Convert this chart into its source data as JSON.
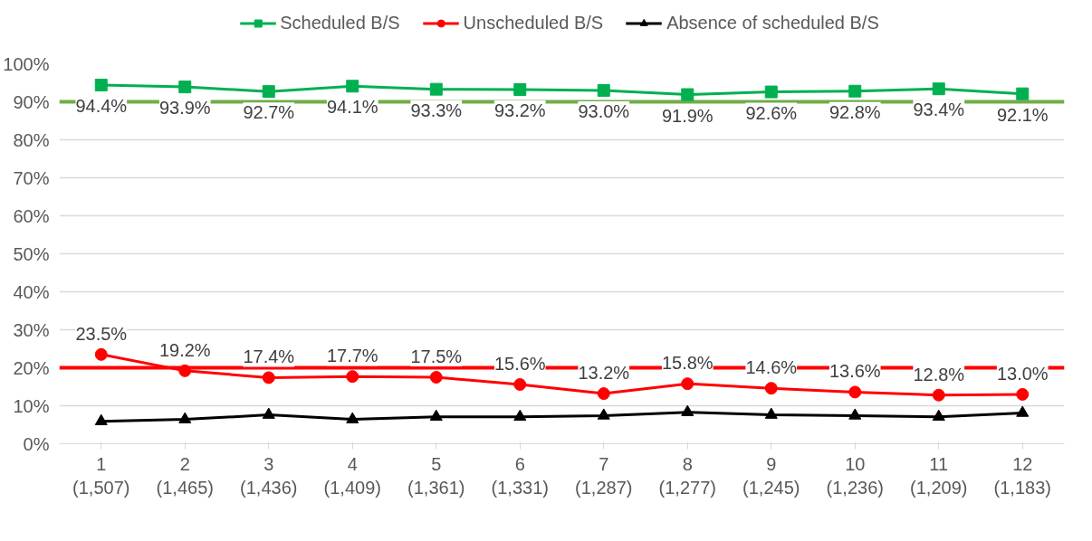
{
  "chart_data": {
    "type": "line",
    "categories": [
      "1\n(1,507)",
      "2\n(1,465)",
      "3\n(1,436)",
      "4\n(1,409)",
      "5\n(1,361)",
      "6\n(1,331)",
      "7\n(1,287)",
      "8\n(1,277)",
      "9\n(1,245)",
      "10\n(1,236)",
      "11\n(1,209)",
      "12\n(1,183)"
    ],
    "series": [
      {
        "name": "Scheduled B/S",
        "color": "#00b050",
        "marker": "square",
        "values": [
          94.4,
          93.9,
          92.7,
          94.1,
          93.3,
          93.2,
          93.0,
          91.9,
          92.6,
          92.8,
          93.4,
          92.1
        ],
        "value_labels": [
          "94.4%",
          "93.9%",
          "92.7%",
          "94.1%",
          "93.3%",
          "93.2%",
          "93.0%",
          "91.9%",
          "92.6%",
          "92.8%",
          "93.4%",
          "92.1%"
        ]
      },
      {
        "name": "Unscheduled B/S",
        "color": "#ff0000",
        "marker": "circle",
        "values": [
          23.5,
          19.2,
          17.4,
          17.7,
          17.5,
          15.6,
          13.2,
          15.8,
          14.6,
          13.6,
          12.8,
          13.0
        ],
        "value_labels": [
          "23.5%",
          "19.2%",
          "17.4%",
          "17.7%",
          "17.5%",
          "15.6%",
          "13.2%",
          "15.8%",
          "14.6%",
          "13.6%",
          "12.8%",
          "13.0%"
        ]
      },
      {
        "name": "Absence of scheduled B/S",
        "color": "#000000",
        "marker": "triangle",
        "values": [
          5.9,
          6.4,
          7.6,
          6.4,
          7.1,
          7.1,
          7.4,
          8.3,
          7.6,
          7.4,
          7.1,
          8.1
        ]
      }
    ],
    "ylim": [
      0,
      100
    ],
    "yticks": [
      {
        "value": 0,
        "label": "0%"
      },
      {
        "value": 10,
        "label": "10%"
      },
      {
        "value": 20,
        "label": "20%"
      },
      {
        "value": 30,
        "label": "30%"
      },
      {
        "value": 40,
        "label": "40%"
      },
      {
        "value": 50,
        "label": "50%"
      },
      {
        "value": 60,
        "label": "60%"
      },
      {
        "value": 70,
        "label": "70%"
      },
      {
        "value": 80,
        "label": "80%"
      },
      {
        "value": 90,
        "label": "90%"
      },
      {
        "value": 100,
        "label": "100%"
      }
    ],
    "ref_lines": [
      {
        "axis": "y",
        "value": 90,
        "color": "#70ad47"
      },
      {
        "axis": "y",
        "value": 20,
        "color": "#ff0000"
      }
    ],
    "grid": "y",
    "legend": "top"
  }
}
